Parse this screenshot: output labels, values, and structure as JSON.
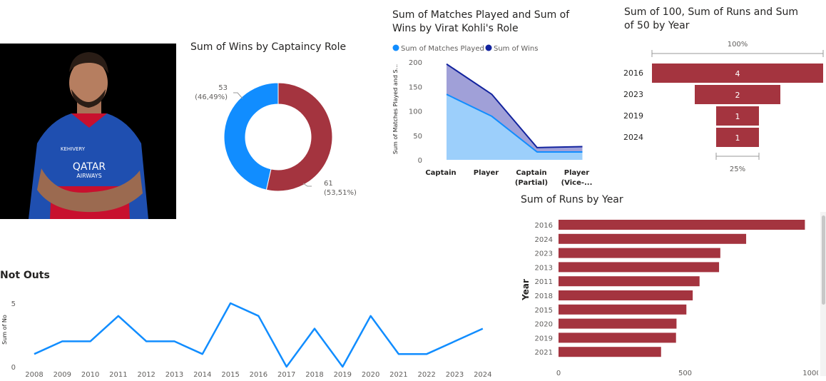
{
  "colors": {
    "maroon": "#a4343f",
    "blue": "#118dff",
    "navy": "#12239e",
    "lightblue": "#9ccffb",
    "slate": "#8f8fd1"
  },
  "photo": {
    "alt": "Player portrait",
    "jersey_text_1": "QATAR",
    "jersey_text_2": "AIRWAYS",
    "jersey_text_3": "KEHIVERY"
  },
  "chart_data": [
    {
      "id": "donut",
      "type": "pie",
      "title": "Sum of Wins by Captaincy Role",
      "slices": [
        {
          "value": 53,
          "label": "53",
          "pct": "(46,49%)",
          "color": "#118dff"
        },
        {
          "value": 61,
          "label": "61",
          "pct": "(53,51%)",
          "color": "#a4343f"
        }
      ]
    },
    {
      "id": "area",
      "type": "area",
      "title_line1": "Sum of Matches Played and Sum of",
      "title_line2": "Wins by Virat Kohli's Role",
      "legend": [
        {
          "name": "Sum of Matches Played",
          "color": "#118dff"
        },
        {
          "name": "Sum of Wins",
          "color": "#12239e"
        }
      ],
      "ylabel": "Sum of Matches Played and S...",
      "yticks": [
        0,
        50,
        100,
        150,
        200
      ],
      "ylim": [
        0,
        200
      ],
      "categories": [
        {
          "line1": "Captain",
          "line2": ""
        },
        {
          "line1": "Player",
          "line2": ""
        },
        {
          "line1": "Captain",
          "line2": "(Partial)"
        },
        {
          "line1": "Player",
          "line2": "(Vice-..."
        }
      ],
      "series": [
        {
          "name": "Sum of Matches Played",
          "values": [
            134,
            89,
            16,
            16
          ]
        },
        {
          "name": "Sum of Wins",
          "values": [
            196,
            134,
            25,
            27
          ]
        }
      ]
    },
    {
      "id": "funnel",
      "type": "bar",
      "title_line1": "Sum of 100, Sum of Runs and Sum",
      "title_line2": "of 50 by Year",
      "top_label": "100%",
      "bottom_label": "25%",
      "categories": [
        "2016",
        "2023",
        "2019",
        "2024"
      ],
      "values": [
        4,
        2,
        1,
        1
      ]
    },
    {
      "id": "runs",
      "type": "bar",
      "title": "Sum of Runs by Year",
      "ylabel": "Year",
      "categories": [
        "2016",
        "2024",
        "2023",
        "2013",
        "2011",
        "2018",
        "2015",
        "2020",
        "2019",
        "2021"
      ],
      "values": [
        973,
        741,
        639,
        634,
        557,
        530,
        505,
        466,
        464,
        405
      ],
      "xticks": [
        0,
        500,
        1000
      ],
      "xlim": [
        0,
        1000
      ]
    },
    {
      "id": "line",
      "type": "line",
      "title": "Not Outs",
      "ylabel": "Sum of No",
      "yticks": [
        0,
        5
      ],
      "ylim": [
        0,
        5
      ],
      "x": [
        "2008",
        "2009",
        "2010",
        "2011",
        "2012",
        "2013",
        "2014",
        "2015",
        "2016",
        "2017",
        "2018",
        "2019",
        "2020",
        "2021",
        "2022",
        "2023",
        "2024"
      ],
      "values": [
        1,
        2,
        2,
        4,
        2,
        2,
        1,
        5,
        4,
        0,
        3,
        0,
        4,
        1,
        1,
        2,
        3
      ]
    }
  ]
}
